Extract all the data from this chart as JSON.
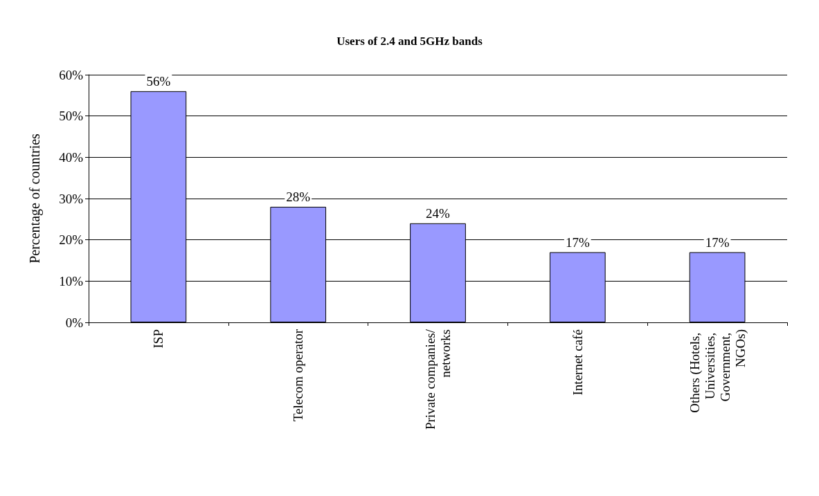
{
  "chart_data": {
    "type": "bar",
    "title": "Users of 2.4 and 5GHz bands",
    "ylabel": "Percentage of countries",
    "categories": [
      "ISP",
      "Telecom operator",
      "Private companies/networks",
      "Internet café",
      "Others (Hotels, Universities, Government, NGOs)"
    ],
    "values": [
      56,
      28,
      24,
      17,
      17
    ],
    "color": "#9999ff",
    "value_labels": [
      "56%",
      "28%",
      "24%",
      "17%",
      "17%"
    ],
    "ylim": [
      0,
      60
    ],
    "yticks": [
      {
        "value": 0,
        "label": "0%"
      },
      {
        "value": 10,
        "label": "10%"
      },
      {
        "value": 20,
        "label": "20%"
      },
      {
        "value": 30,
        "label": "30%"
      },
      {
        "value": 40,
        "label": "40%"
      },
      {
        "value": 50,
        "label": "50%"
      },
      {
        "value": 60,
        "label": "60%"
      }
    ],
    "grid": "y"
  }
}
